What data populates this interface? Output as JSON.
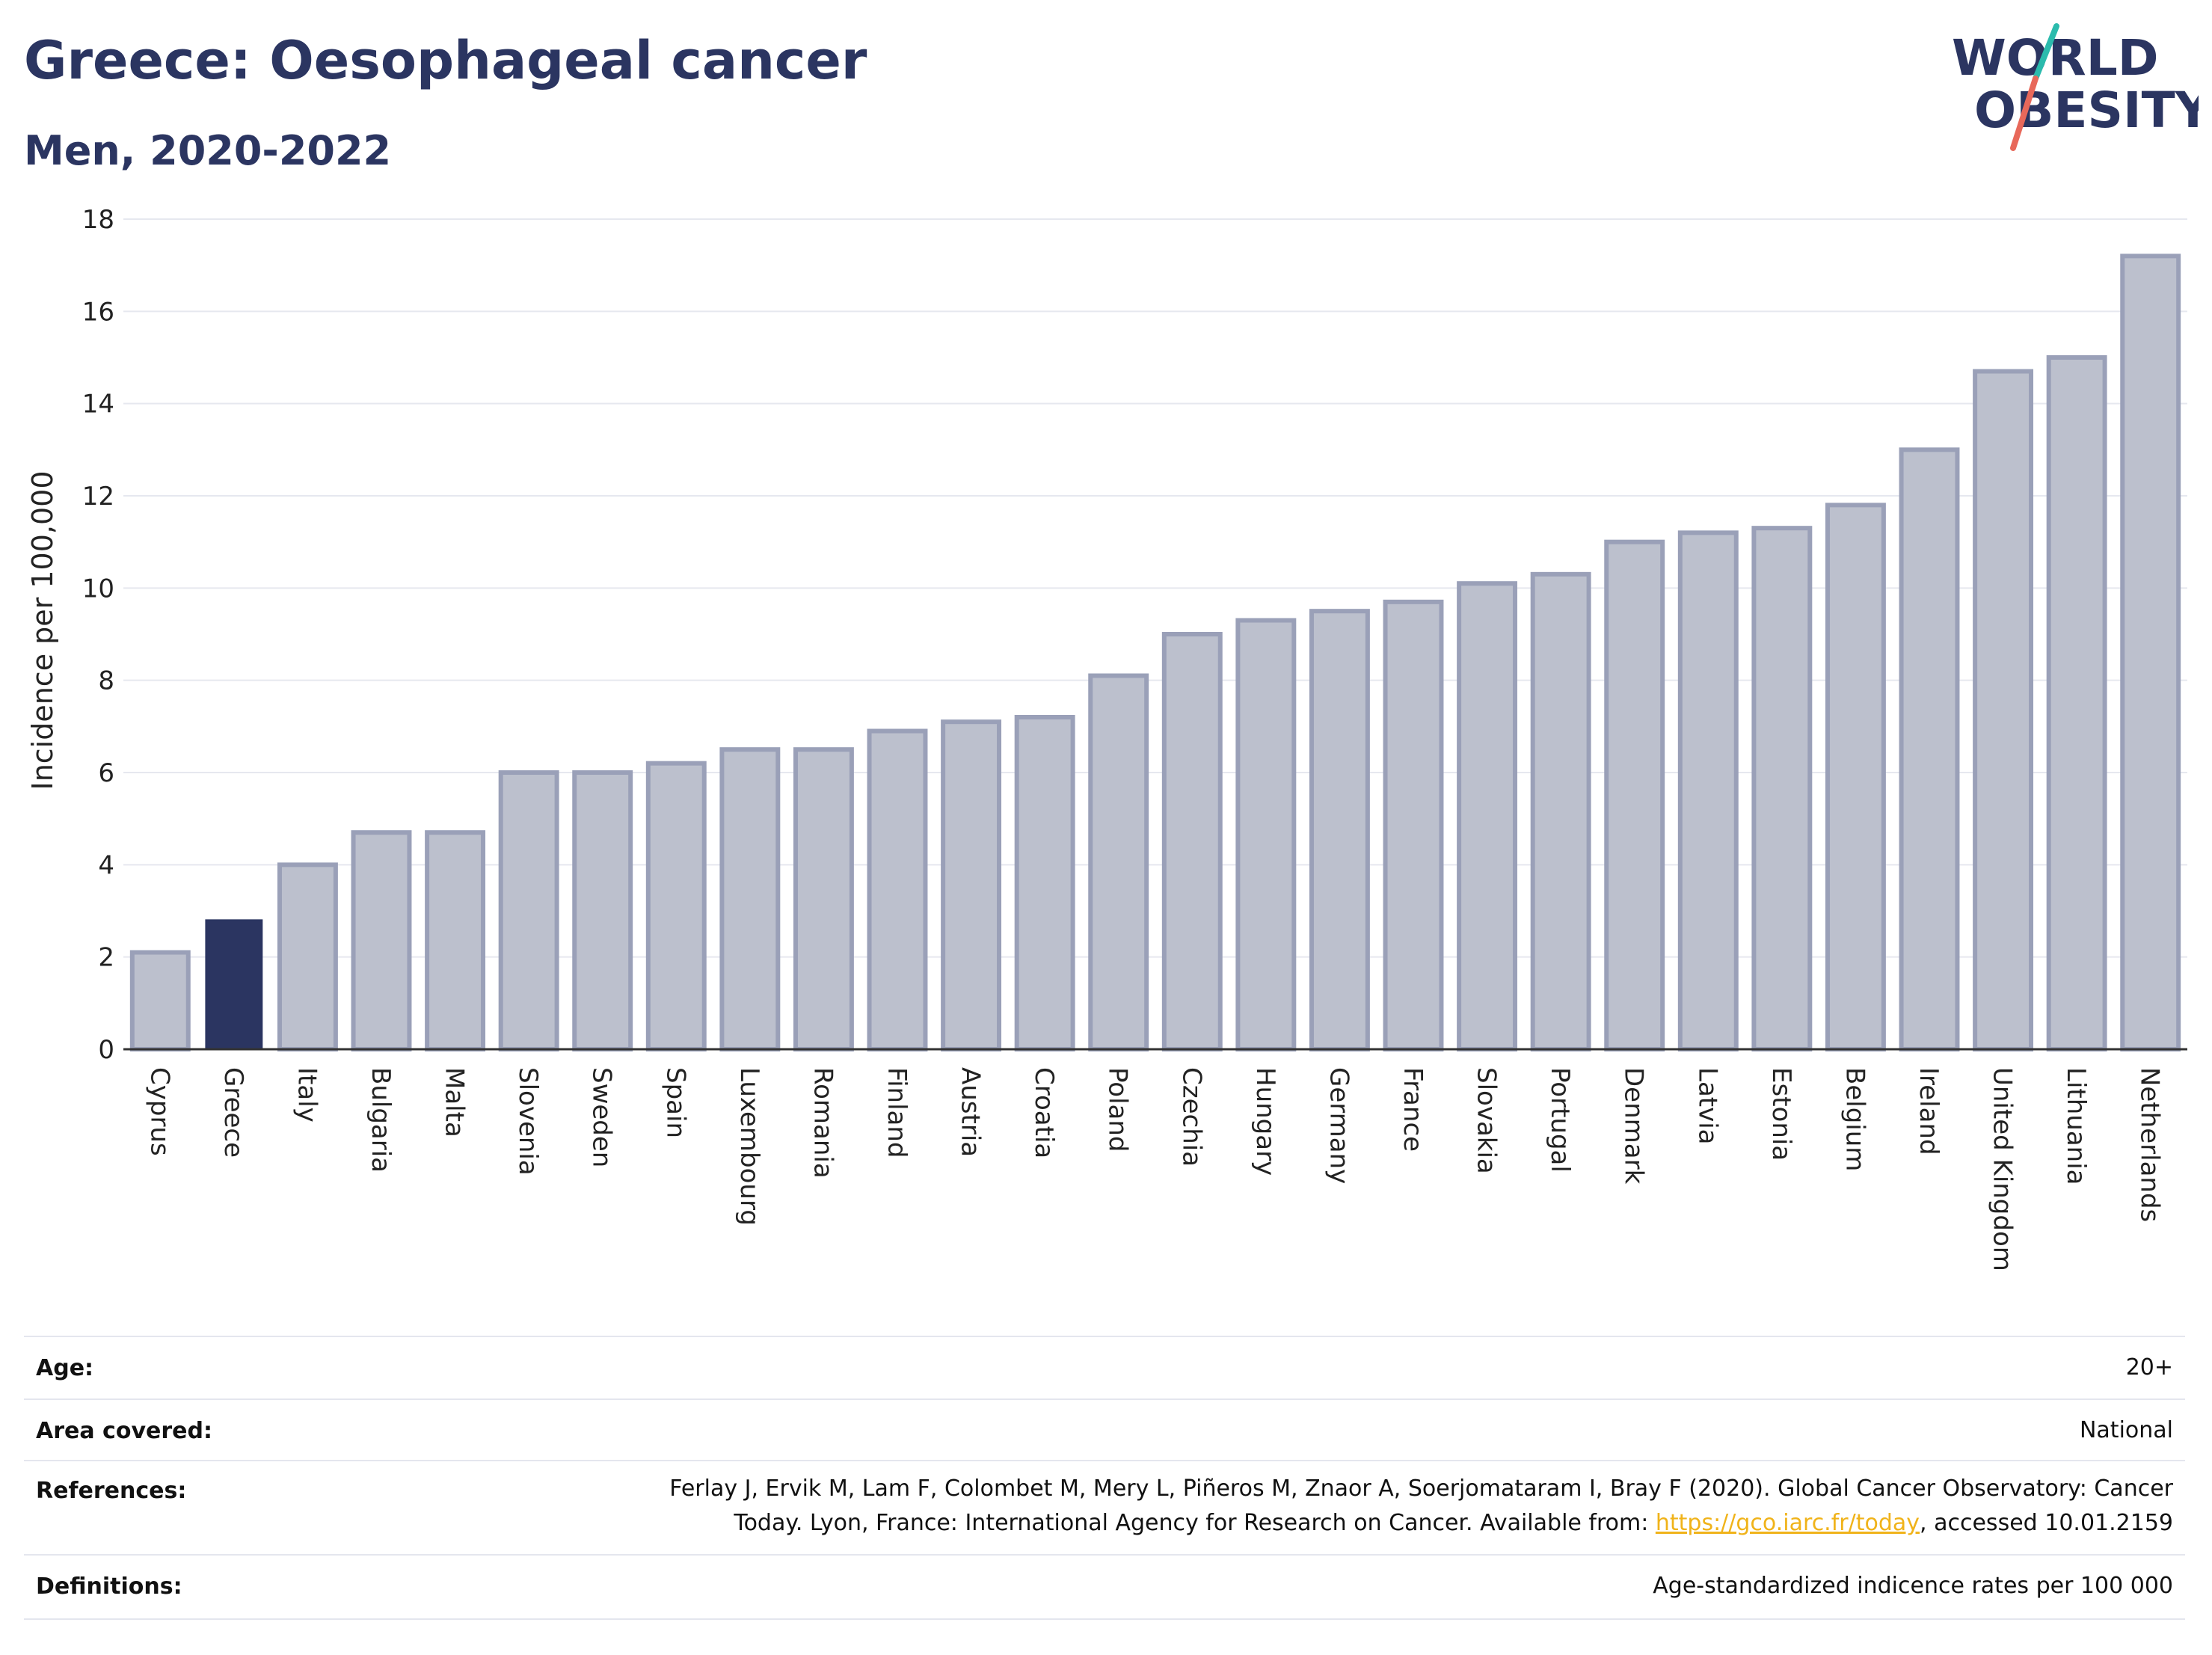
{
  "header": {
    "title": "Greece: Oesophageal cancer",
    "subtitle": "Men, 2020-2022"
  },
  "logo": {
    "line1": "WORLD",
    "line2": "OBESITY"
  },
  "colors": {
    "highlight": "#2b3561",
    "bar": "#bcc0cd",
    "bar_outline": "#9aa0b8",
    "grid": "#e6e8ef",
    "title": "#2b3561",
    "logo_teal": "#2bbbad",
    "logo_red": "#e8685a",
    "link": "#f0b31a"
  },
  "chart_data": {
    "type": "bar",
    "ylabel": "Incidence per 100,000",
    "ylim": [
      0,
      18
    ],
    "yticks": [
      0,
      2,
      4,
      6,
      8,
      10,
      12,
      14,
      16,
      18
    ],
    "grid": true,
    "highlight": "Greece",
    "categories": [
      "Cyprus",
      "Greece",
      "Italy",
      "Bulgaria",
      "Malta",
      "Slovenia",
      "Sweden",
      "Spain",
      "Luxembourg",
      "Romania",
      "Finland",
      "Austria",
      "Croatia",
      "Poland",
      "Czechia",
      "Hungary",
      "Germany",
      "France",
      "Slovakia",
      "Portugal",
      "Denmark",
      "Latvia",
      "Estonia",
      "Belgium",
      "Ireland",
      "United Kingdom",
      "Lithuania",
      "Netherlands"
    ],
    "values": [
      2.1,
      2.8,
      4.0,
      4.7,
      4.7,
      6.0,
      6.0,
      6.2,
      6.5,
      6.5,
      6.9,
      7.1,
      7.2,
      8.1,
      9.0,
      9.3,
      9.5,
      9.7,
      10.1,
      10.3,
      11.0,
      11.2,
      11.3,
      11.8,
      13.0,
      14.7,
      15.0,
      17.2
    ]
  },
  "meta": {
    "age_label": "Age:",
    "age_value": "20+",
    "area_label": "Area covered:",
    "area_value": "National",
    "references_label": "References:",
    "references_line1": "Ferlay J, Ervik M, Lam F, Colombet M, Mery L, Piñeros M, Znaor A, Soerjomataram I, Bray F (2020). Global Cancer Observatory: Cancer",
    "references_line2_pre": "Today. Lyon, France: International Agency for Research on Cancer. Available from: ",
    "references_link": "https://gco.iarc.fr/today",
    "references_line2_post": ", accessed 10.01.2159",
    "definitions_label": "Definitions:",
    "definitions_value": "Age-standardized indicence rates per 100 000"
  }
}
